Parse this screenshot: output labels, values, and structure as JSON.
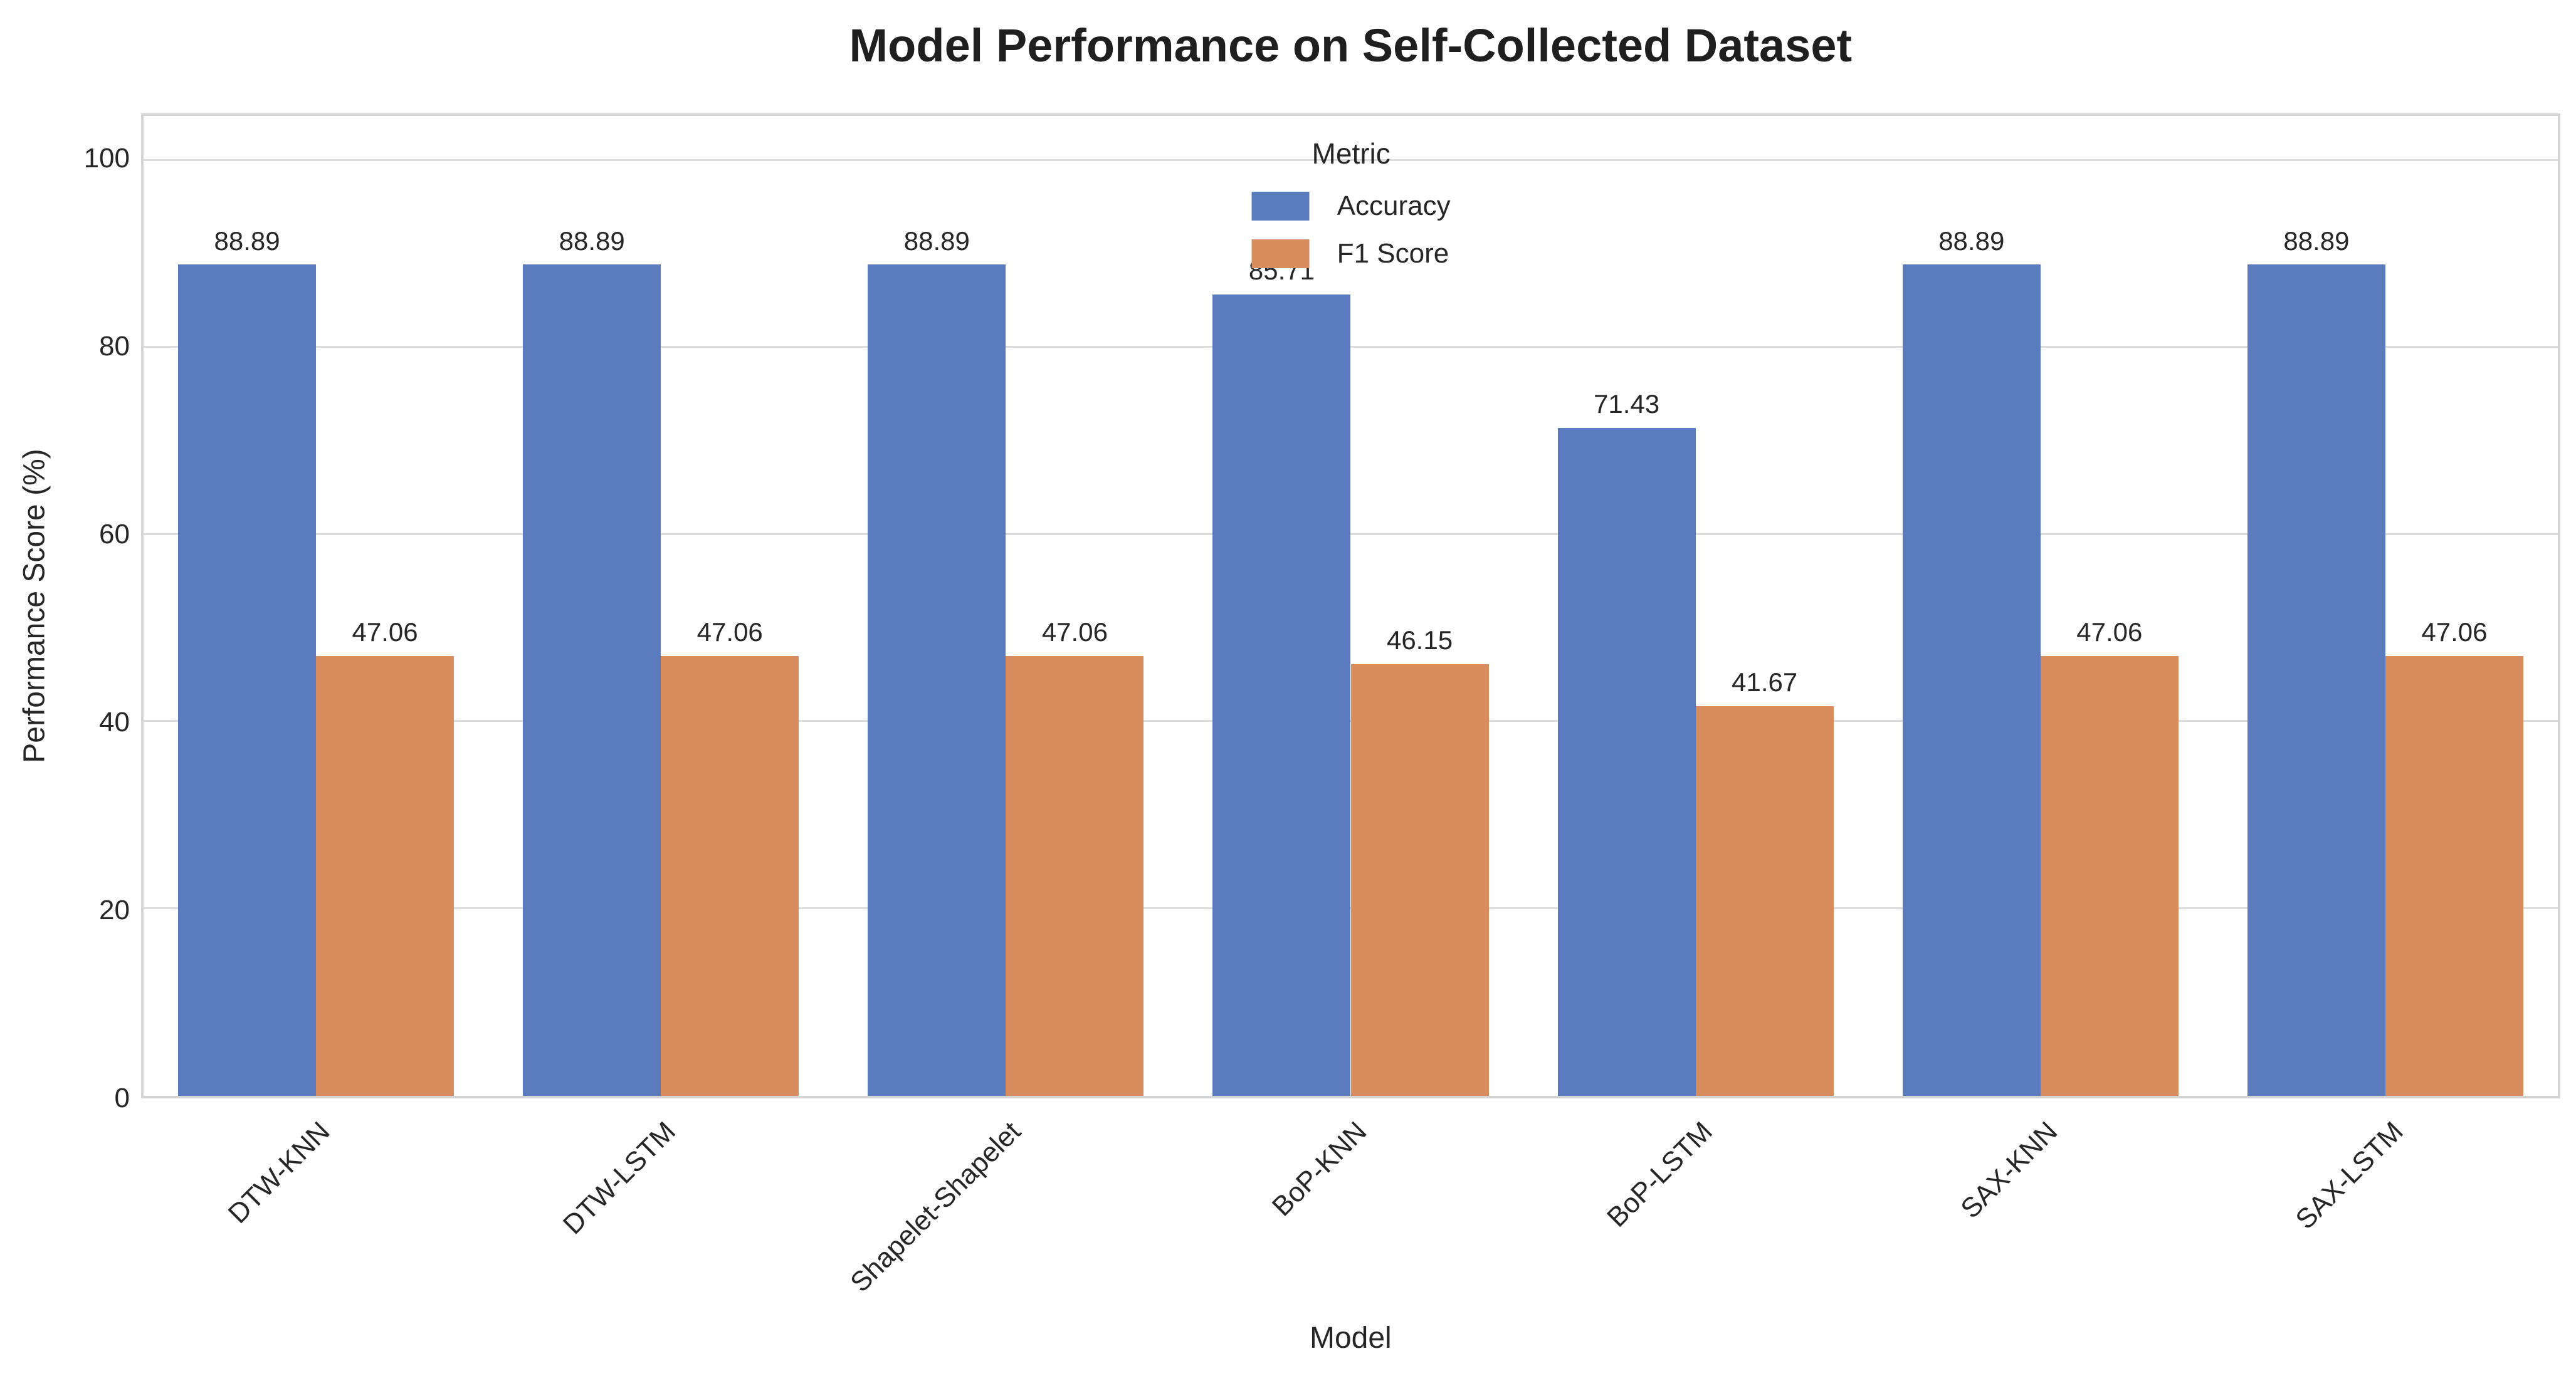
{
  "chart_data": {
    "type": "bar",
    "title": "Model Performance on Self-Collected Dataset",
    "xlabel": "Model",
    "ylabel": "Performance Score (%)",
    "categories": [
      "DTW-KNN",
      "DTW-LSTM",
      "Shapelet-Shapelet",
      "BoP-KNN",
      "BoP-LSTM",
      "SAX-KNN",
      "SAX-LSTM"
    ],
    "series": [
      {
        "name": "Accuracy",
        "color": "#5a7cbe",
        "values": [
          88.89,
          88.89,
          88.89,
          85.71,
          71.43,
          88.89,
          88.89
        ]
      },
      {
        "name": "F1 Score",
        "color": "#d98c5e",
        "values": [
          47.06,
          47.06,
          47.06,
          46.15,
          41.67,
          47.06,
          47.06
        ]
      }
    ],
    "legend": {
      "title": "Metric",
      "position": "upper center"
    },
    "ylim": [
      0,
      104.8
    ],
    "yticks": [
      0,
      20,
      40,
      60,
      80,
      100
    ],
    "grid": true,
    "bar_value_labels": true,
    "value_label_format": "2dp",
    "colors": {
      "grid": "#dcdcdc",
      "spine": "#d4d4d4",
      "text": "#262626",
      "title_text": "#1f1f1f",
      "background": "#ffffff"
    }
  }
}
